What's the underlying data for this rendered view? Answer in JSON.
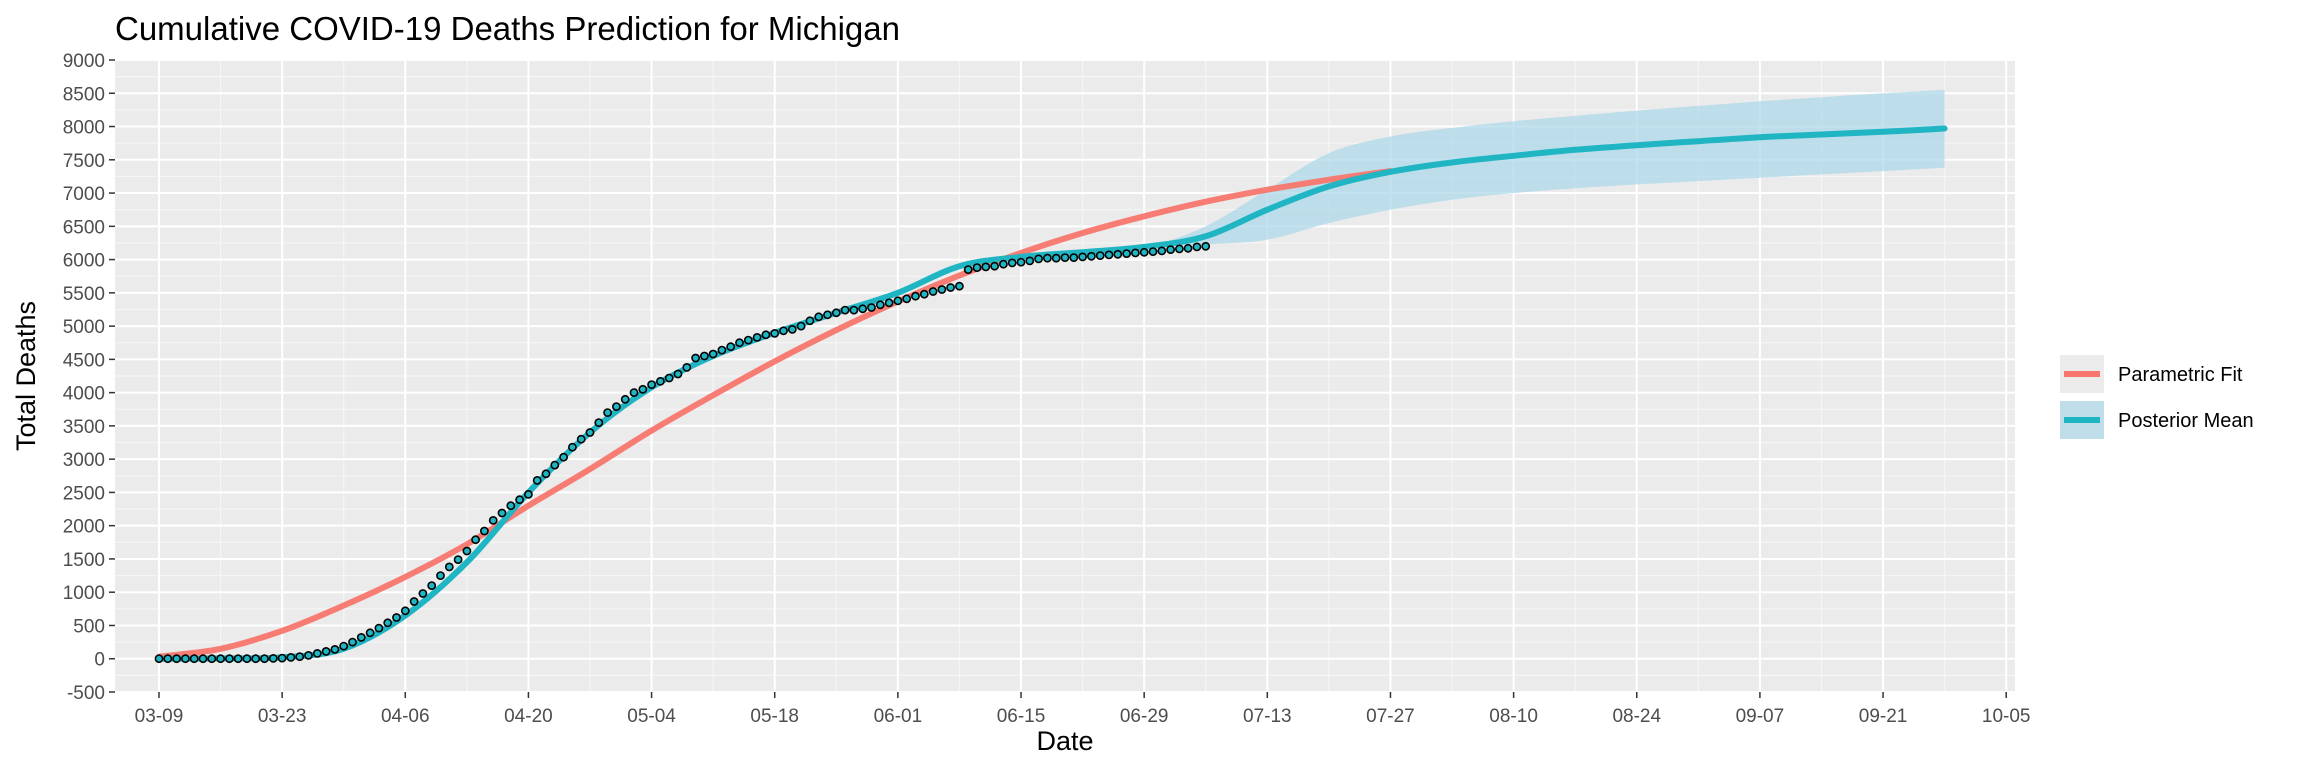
{
  "chart_data": {
    "type": "line",
    "title": "Cumulative COVID-19 Deaths Prediction for Michigan",
    "xlabel": "Date",
    "ylabel": "Total Deaths",
    "x_start": "2020-03-04",
    "x_end": "2020-10-06",
    "ylim": [
      -500,
      9000
    ],
    "yticks": [
      -500,
      0,
      500,
      1000,
      1500,
      2000,
      2500,
      3000,
      3500,
      4000,
      4500,
      5000,
      5500,
      6000,
      6500,
      7000,
      7500,
      8000,
      8500,
      9000
    ],
    "xticks": [
      {
        "date": "2020-03-09",
        "label": "03-09"
      },
      {
        "date": "2020-03-23",
        "label": "03-23"
      },
      {
        "date": "2020-04-06",
        "label": "04-06"
      },
      {
        "date": "2020-04-20",
        "label": "04-20"
      },
      {
        "date": "2020-05-04",
        "label": "05-04"
      },
      {
        "date": "2020-05-18",
        "label": "05-18"
      },
      {
        "date": "2020-06-01",
        "label": "06-01"
      },
      {
        "date": "2020-06-15",
        "label": "06-15"
      },
      {
        "date": "2020-06-29",
        "label": "06-29"
      },
      {
        "date": "2020-07-13",
        "label": "07-13"
      },
      {
        "date": "2020-07-27",
        "label": "07-27"
      },
      {
        "date": "2020-08-10",
        "label": "08-10"
      },
      {
        "date": "2020-08-24",
        "label": "08-24"
      },
      {
        "date": "2020-09-07",
        "label": "09-07"
      },
      {
        "date": "2020-09-21",
        "label": "09-21"
      },
      {
        "date": "2020-10-05",
        "label": "10-05"
      }
    ],
    "grid": true,
    "legend_position": "right",
    "series": [
      {
        "name": "Parametric Fit",
        "color": "#f8766d",
        "points": [
          [
            "2020-03-09",
            30
          ],
          [
            "2020-03-16",
            150
          ],
          [
            "2020-03-23",
            420
          ],
          [
            "2020-03-30",
            800
          ],
          [
            "2020-04-06",
            1230
          ],
          [
            "2020-04-13",
            1720
          ],
          [
            "2020-04-20",
            2300
          ],
          [
            "2020-04-27",
            2850
          ],
          [
            "2020-05-04",
            3430
          ],
          [
            "2020-05-11",
            3960
          ],
          [
            "2020-05-18",
            4470
          ],
          [
            "2020-05-25",
            4940
          ],
          [
            "2020-06-01",
            5370
          ],
          [
            "2020-06-08",
            5760
          ],
          [
            "2020-06-15",
            6100
          ],
          [
            "2020-06-22",
            6400
          ],
          [
            "2020-06-29",
            6650
          ],
          [
            "2020-07-06",
            6870
          ],
          [
            "2020-07-13",
            7050
          ],
          [
            "2020-07-20",
            7200
          ],
          [
            "2020-07-27",
            7330
          ]
        ]
      },
      {
        "name": "Posterior Mean",
        "color": "#1fb5c3",
        "points": [
          [
            "2020-03-09",
            0
          ],
          [
            "2020-03-16",
            5
          ],
          [
            "2020-03-23",
            20
          ],
          [
            "2020-03-30",
            150
          ],
          [
            "2020-04-06",
            650
          ],
          [
            "2020-04-13",
            1450
          ],
          [
            "2020-04-20",
            2500
          ],
          [
            "2020-04-27",
            3400
          ],
          [
            "2020-05-04",
            4080
          ],
          [
            "2020-05-11",
            4550
          ],
          [
            "2020-05-18",
            4900
          ],
          [
            "2020-05-25",
            5200
          ],
          [
            "2020-06-01",
            5500
          ],
          [
            "2020-06-08",
            5900
          ],
          [
            "2020-06-15",
            6040
          ],
          [
            "2020-06-22",
            6110
          ],
          [
            "2020-06-29",
            6190
          ],
          [
            "2020-07-06",
            6350
          ],
          [
            "2020-07-13",
            6750
          ],
          [
            "2020-07-20",
            7100
          ],
          [
            "2020-07-27",
            7320
          ],
          [
            "2020-08-03",
            7460
          ],
          [
            "2020-08-10",
            7560
          ],
          [
            "2020-08-17",
            7650
          ],
          [
            "2020-08-24",
            7720
          ],
          [
            "2020-08-31",
            7780
          ],
          [
            "2020-09-07",
            7840
          ],
          [
            "2020-09-14",
            7880
          ],
          [
            "2020-09-21",
            7920
          ],
          [
            "2020-09-28",
            7970
          ]
        ]
      }
    ],
    "credible_band": {
      "color": "#aed8ea",
      "points": [
        [
          "2020-06-30",
          6200,
          6200
        ],
        [
          "2020-07-06",
          6230,
          6500
        ],
        [
          "2020-07-13",
          6300,
          7050
        ],
        [
          "2020-07-20",
          6550,
          7600
        ],
        [
          "2020-07-27",
          6750,
          7850
        ],
        [
          "2020-08-03",
          6900,
          7980
        ],
        [
          "2020-08-10",
          7000,
          8080
        ],
        [
          "2020-08-17",
          7070,
          8160
        ],
        [
          "2020-08-24",
          7130,
          8240
        ],
        [
          "2020-08-31",
          7180,
          8310
        ],
        [
          "2020-09-07",
          7230,
          8380
        ],
        [
          "2020-09-14",
          7280,
          8440
        ],
        [
          "2020-09-21",
          7330,
          8500
        ],
        [
          "2020-09-28",
          7380,
          8550
        ]
      ]
    },
    "observed": {
      "fill": "#1fb5c3",
      "start": "2020-03-09",
      "values": [
        0,
        0,
        0,
        0,
        0,
        0,
        0,
        0,
        0,
        0,
        0,
        0,
        0,
        5,
        10,
        20,
        30,
        50,
        80,
        110,
        140,
        190,
        250,
        320,
        390,
        460,
        540,
        620,
        720,
        860,
        980,
        1100,
        1250,
        1380,
        1490,
        1620,
        1790,
        1920,
        2080,
        2190,
        2300,
        2390,
        2470,
        2680,
        2780,
        2910,
        3030,
        3180,
        3300,
        3400,
        3550,
        3700,
        3790,
        3900,
        4000,
        4050,
        4120,
        4170,
        4220,
        4280,
        4380,
        4520,
        4550,
        4580,
        4640,
        4690,
        4750,
        4790,
        4830,
        4870,
        4890,
        4930,
        4950,
        5000,
        5080,
        5140,
        5170,
        5200,
        5240,
        5240,
        5260,
        5280,
        5320,
        5350,
        5380,
        5410,
        5450,
        5480,
        5520,
        5550,
        5580,
        5600,
        5850,
        5880,
        5890,
        5900,
        5930,
        5950,
        5960,
        5980,
        6010,
        6020,
        6020,
        6030,
        6030,
        6040,
        6050,
        6060,
        6070,
        6080,
        6090,
        6100,
        6110,
        6120,
        6130,
        6150,
        6160,
        6170,
        6190,
        6200
      ]
    }
  }
}
